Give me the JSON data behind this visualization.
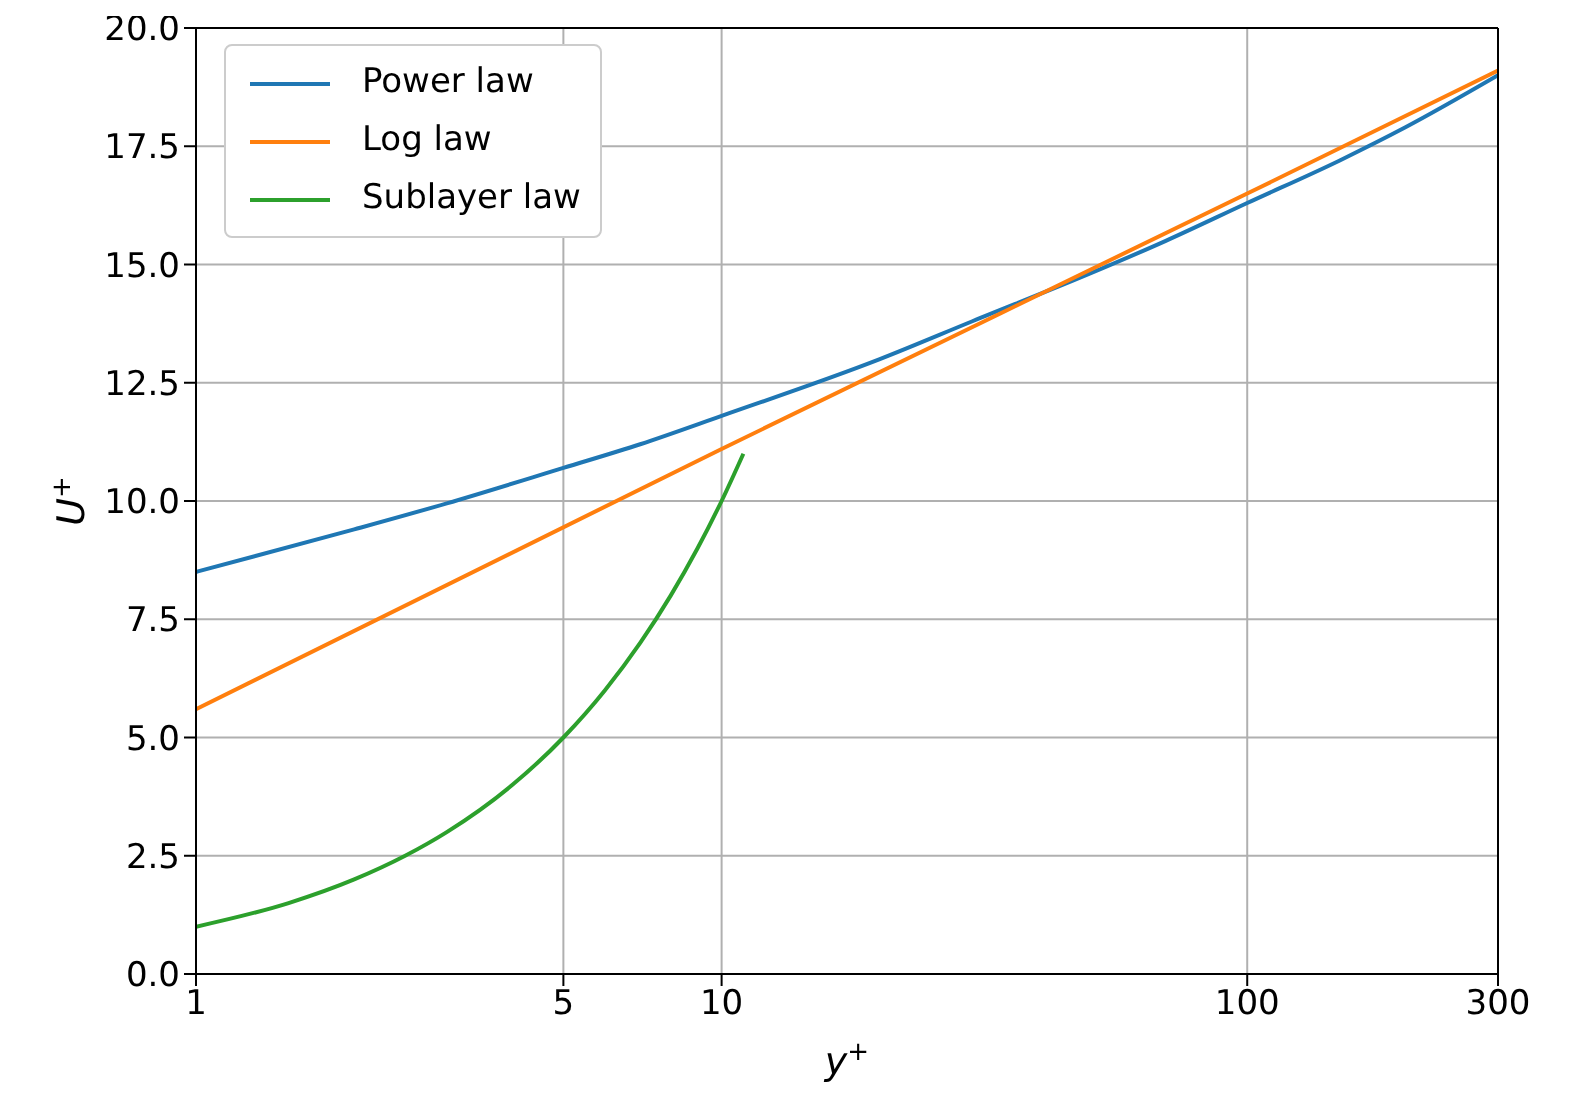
{
  "chart_data": {
    "type": "line",
    "xlabel": "y$^{+}$",
    "ylabel": "U$^{+}$",
    "log": "x",
    "xlim": [
      1,
      300
    ],
    "xticks": [
      1,
      5,
      10,
      100,
      300
    ],
    "ylim": [
      0,
      20
    ],
    "yticks": [
      {
        "value": 0,
        "label": "0.0"
      },
      {
        "value": 2.5,
        "label": "2.5"
      },
      {
        "value": 5,
        "label": "5.0"
      },
      {
        "value": 7.5,
        "label": "7.5"
      },
      {
        "value": 10,
        "label": "10.0"
      },
      {
        "value": 12.5,
        "label": "12.5"
      },
      {
        "value": 15,
        "label": "15.0"
      },
      {
        "value": 17.5,
        "label": "17.5"
      },
      {
        "value": 20,
        "label": "20.0"
      }
    ],
    "grid": true,
    "legend": "top left",
    "line_style": "solid",
    "series": [
      {
        "name": "Power law",
        "color": "#1f77b4",
        "x": [
          1,
          2,
          3,
          5,
          7,
          10,
          20,
          30,
          50,
          70,
          100,
          150,
          200,
          300
        ],
        "values": [
          8.5,
          9.4,
          9.95,
          10.7,
          11.2,
          11.8,
          13.0,
          13.8,
          14.8,
          15.5,
          16.3,
          17.2,
          17.9,
          19.0
        ]
      },
      {
        "name": "Log law",
        "color": "#ff7f0e",
        "x": [
          1,
          10,
          100,
          300
        ],
        "values": [
          5.6,
          11.1,
          16.5,
          19.1
        ]
      },
      {
        "name": "Sublayer law",
        "color": "#2ca02c",
        "x": [
          1,
          1.5,
          2,
          2.5,
          3,
          4,
          5,
          6,
          7,
          8,
          9,
          10,
          11
        ],
        "values": [
          1,
          1.5,
          2,
          2.5,
          3,
          4,
          5,
          6,
          7,
          8,
          9,
          10,
          11
        ]
      }
    ]
  }
}
